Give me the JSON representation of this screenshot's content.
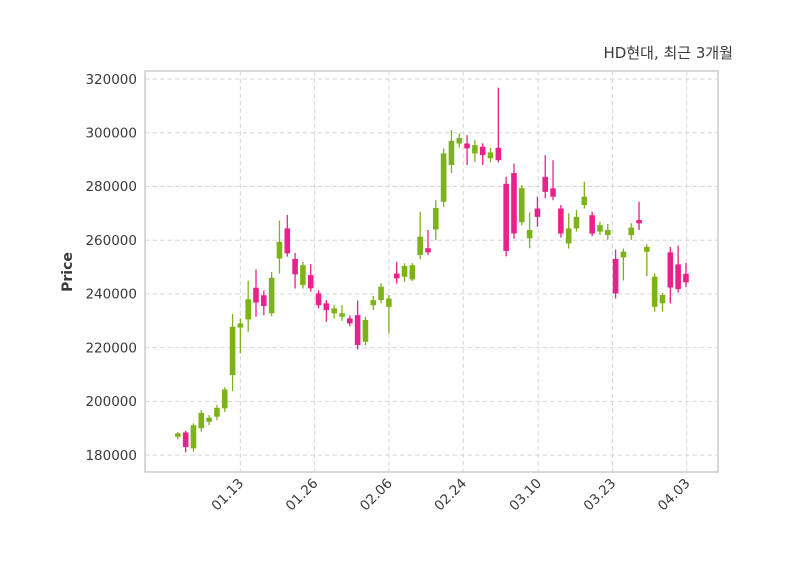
{
  "figure": {
    "title": "HD현대, 최근 3개월",
    "y_axis_label": "Price"
  },
  "colors": {
    "up": "#7cb318",
    "down": "#e9218c",
    "text": "#3a3a3a",
    "grid": "#d6d6d6",
    "spine": "#c8c8c8",
    "background": "#ffffff"
  },
  "chart_data": {
    "type": "candlestick",
    "title": "HD현대, 최근 3개월",
    "ylabel": "Price",
    "xlabel": "",
    "grid": "dashed-both-axes",
    "legend": "none",
    "y_ticks": [
      180000,
      200000,
      220000,
      240000,
      260000,
      280000,
      300000,
      320000
    ],
    "ylim": [
      173700,
      323000
    ],
    "xlim_index": [
      -4.2,
      69.1
    ],
    "x_tick_labels": [
      "01.13",
      "01.26",
      "02.06",
      "02.24",
      "03.10",
      "03.23",
      "04.03"
    ],
    "x_tick_index_positions": [
      8.0,
      17.5,
      27.0,
      36.5,
      46.1,
      55.6,
      65.1
    ],
    "columns": [
      "open",
      "high",
      "low",
      "close"
    ],
    "candles": [
      [
        186800,
        188600,
        185900,
        188100
      ],
      [
        188400,
        189100,
        181000,
        183000
      ],
      [
        182500,
        191800,
        181300,
        191100
      ],
      [
        190000,
        196700,
        188700,
        195700
      ],
      [
        192400,
        194900,
        191200,
        193900
      ],
      [
        194300,
        198600,
        193000,
        197600
      ],
      [
        197400,
        205200,
        196100,
        204400
      ],
      [
        209800,
        232500,
        203800,
        227800
      ],
      [
        227500,
        230900,
        217900,
        229000
      ],
      [
        230500,
        244900,
        225900,
        238000
      ],
      [
        242300,
        249100,
        231500,
        236800
      ],
      [
        239500,
        241200,
        232100,
        235500
      ],
      [
        232800,
        248200,
        231700,
        246000
      ],
      [
        253200,
        267300,
        247600,
        259400
      ],
      [
        264400,
        269400,
        253900,
        255100
      ],
      [
        253000,
        255300,
        242000,
        247300
      ],
      [
        243300,
        252000,
        242000,
        250700
      ],
      [
        247000,
        251100,
        240800,
        242100
      ],
      [
        240200,
        241400,
        234600,
        235800
      ],
      [
        236500,
        237700,
        229600,
        234000
      ],
      [
        232800,
        235800,
        230900,
        234600
      ],
      [
        231500,
        235800,
        230000,
        232800
      ],
      [
        230900,
        232000,
        228000,
        229000
      ],
      [
        232100,
        237500,
        219300,
        221000
      ],
      [
        222200,
        231500,
        220900,
        230300
      ],
      [
        235800,
        239200,
        234000,
        237700
      ],
      [
        237700,
        243900,
        236500,
        242700
      ],
      [
        235200,
        239600,
        225300,
        238300
      ],
      [
        247600,
        252000,
        243900,
        245800
      ],
      [
        246400,
        251400,
        244500,
        250400
      ],
      [
        245400,
        251500,
        244800,
        250700
      ],
      [
        254500,
        270600,
        253000,
        261300
      ],
      [
        257000,
        263800,
        254500,
        255500
      ],
      [
        264000,
        274900,
        260000,
        272000
      ],
      [
        274300,
        294200,
        272400,
        292300
      ],
      [
        288000,
        301000,
        285000,
        297000
      ],
      [
        296000,
        299700,
        294500,
        298100
      ],
      [
        296000,
        299100,
        288000,
        294200
      ],
      [
        292300,
        297300,
        289200,
        295400
      ],
      [
        294800,
        296100,
        288000,
        291700
      ],
      [
        290500,
        294400,
        289000,
        292700
      ],
      [
        294400,
        316800,
        289000,
        289800
      ],
      [
        281000,
        283600,
        254000,
        256000
      ],
      [
        285000,
        288500,
        260500,
        262500
      ],
      [
        266700,
        280500,
        265500,
        279400
      ],
      [
        260700,
        270300,
        257000,
        263800
      ],
      [
        271800,
        276200,
        265000,
        268700
      ],
      [
        283600,
        291700,
        275600,
        278000
      ],
      [
        279300,
        289800,
        274900,
        276200
      ],
      [
        271800,
        273100,
        261000,
        262500
      ],
      [
        258800,
        270000,
        256900,
        264400
      ],
      [
        264400,
        271200,
        263200,
        268700
      ],
      [
        273100,
        281800,
        271800,
        276200
      ],
      [
        269300,
        270600,
        261500,
        262500
      ],
      [
        263200,
        266900,
        261900,
        265600
      ],
      [
        261900,
        266000,
        260100,
        263800
      ],
      [
        253000,
        256500,
        238300,
        240200
      ],
      [
        253600,
        256900,
        245000,
        255700
      ],
      [
        261900,
        266300,
        260100,
        264700
      ],
      [
        267500,
        274300,
        263800,
        266300
      ],
      [
        255700,
        258500,
        246600,
        257500
      ],
      [
        235200,
        247600,
        233400,
        246400
      ],
      [
        236500,
        240400,
        233400,
        239600
      ],
      [
        255500,
        257500,
        236500,
        242400
      ],
      [
        251000,
        258000,
        240500,
        241800
      ],
      [
        247500,
        251500,
        242500,
        244300
      ]
    ]
  }
}
